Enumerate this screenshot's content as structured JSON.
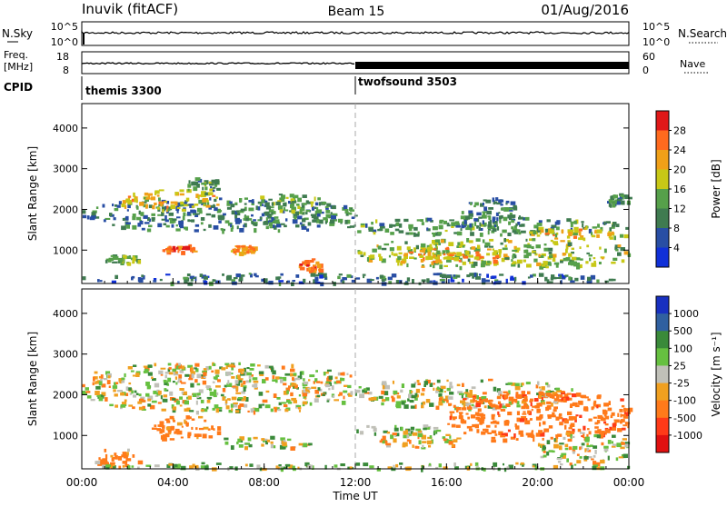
{
  "header": {
    "station": "Inuvik (fitACF)",
    "beam": "Beam 15",
    "date": "01/Aug/2016"
  },
  "top_panels": {
    "nsky_label": "N.Sky",
    "nsky_ticks": [
      "10^5",
      "10^0"
    ],
    "nsearch_label": "N.Search",
    "nsearch_ticks": [
      "10^5",
      "10^0"
    ],
    "freq_label_1": "Freq.",
    "freq_label_2": "[MHz]",
    "freq_ticks": [
      "18",
      "8"
    ],
    "nave_label": "Nave",
    "nave_ticks": [
      "60",
      "0"
    ],
    "cpid_label": "CPID",
    "cpid_segments": [
      "themis 3300",
      "twofsound 3503"
    ]
  },
  "x_axis": {
    "label": "Time UT",
    "ticks": [
      "00:00",
      "04:00",
      "08:00",
      "12:00",
      "16:00",
      "20:00",
      "00:00"
    ]
  },
  "colors": {
    "power": [
      "#1030d8",
      "#284ea4",
      "#3f7b50",
      "#56a04a",
      "#c8c816",
      "#f0a018",
      "#ff6a1e",
      "#e01818"
    ],
    "velocity": [
      "#1830c0",
      "#3060a0",
      "#3a8a3a",
      "#66c040",
      "#c0c0b8",
      "#f0a020",
      "#ff7a1a",
      "#ff3a18",
      "#e01010"
    ]
  },
  "chart_data": [
    {
      "type": "heatmap",
      "quantity": "Power",
      "ylabel": "Slant Range [km]",
      "yticks": [
        "4000",
        "3000",
        "2000",
        "1000"
      ],
      "ylim": [
        180,
        4600
      ],
      "xlim": [
        0,
        24
      ],
      "colorbar_label": "Power [dB]",
      "colorbar_ticks": [
        "28",
        "24",
        "20",
        "16",
        "12",
        "8",
        "4"
      ],
      "colorbar_range": [
        0,
        32
      ],
      "blobs": [
        {
          "t": [
            0.0,
            12.0
          ],
          "r": [
            1500,
            2300
          ],
          "v": 10
        },
        {
          "t": [
            1.5,
            6.0
          ],
          "r": [
            2000,
            2500
          ],
          "v": 20
        },
        {
          "t": [
            7.5,
            10.5
          ],
          "r": [
            1900,
            2400
          ],
          "v": 14
        },
        {
          "t": [
            11.5,
            24.0
          ],
          "r": [
            1400,
            1800
          ],
          "v": 12
        },
        {
          "t": [
            16.5,
            19.5
          ],
          "r": [
            1500,
            2300
          ],
          "v": 10
        },
        {
          "t": [
            12.0,
            24.0
          ],
          "r": [
            600,
            1300
          ],
          "v": 16
        },
        {
          "t": [
            14.0,
            18.5
          ],
          "r": [
            700,
            1100
          ],
          "v": 22
        },
        {
          "t": [
            3.5,
            5.0
          ],
          "r": [
            950,
            1150
          ],
          "v": 26
        },
        {
          "t": [
            1.0,
            2.5
          ],
          "r": [
            700,
            900
          ],
          "v": 14
        },
        {
          "t": [
            6.5,
            7.5
          ],
          "r": [
            950,
            1150
          ],
          "v": 22
        },
        {
          "t": [
            9.5,
            10.5
          ],
          "r": [
            500,
            800
          ],
          "v": 24
        },
        {
          "t": [
            0.0,
            24.0
          ],
          "r": [
            200,
            450
          ],
          "v": 8
        },
        {
          "t": [
            19.5,
            24.0
          ],
          "r": [
            1300,
            1600
          ],
          "v": 20
        },
        {
          "t": [
            23.0,
            24.0
          ],
          "r": [
            2100,
            2400
          ],
          "v": 10
        },
        {
          "t": [
            4.5,
            6.0
          ],
          "r": [
            2400,
            2800
          ],
          "v": 12
        }
      ]
    },
    {
      "type": "heatmap",
      "quantity": "Velocity",
      "ylabel": "Slant Range [km]",
      "yticks": [
        "4000",
        "3000",
        "2000",
        "1000"
      ],
      "ylim": [
        180,
        4600
      ],
      "xlim": [
        0,
        24
      ],
      "colorbar_label": "Velocity [m s^-1]",
      "colorbar_ticks": [
        "1000",
        "500",
        "100",
        "25",
        "-25",
        "-100",
        "-500",
        "-1000"
      ],
      "blobs": [
        {
          "t": [
            0.0,
            12.0
          ],
          "r": [
            1600,
            2800
          ],
          "v": 0
        },
        {
          "t": [
            12.0,
            21.5
          ],
          "r": [
            1700,
            2400
          ],
          "v": 0
        },
        {
          "t": [
            16.0,
            24.0
          ],
          "r": [
            900,
            2100
          ],
          "v": -400
        },
        {
          "t": [
            12.0,
            16.0
          ],
          "r": [
            1000,
            1300
          ],
          "v": 60
        },
        {
          "t": [
            3.0,
            6.0
          ],
          "r": [
            900,
            1500
          ],
          "v": -200
        },
        {
          "t": [
            6.0,
            10.0
          ],
          "r": [
            700,
            1000
          ],
          "v": 0
        },
        {
          "t": [
            0.5,
            2.5
          ],
          "r": [
            250,
            700
          ],
          "v": -150
        },
        {
          "t": [
            20.0,
            24.0
          ],
          "r": [
            300,
            1100
          ],
          "v": 0
        },
        {
          "t": [
            13.0,
            16.5
          ],
          "r": [
            700,
            1100
          ],
          "v": -50
        },
        {
          "t": [
            0.0,
            24.0
          ],
          "r": [
            200,
            350
          ],
          "v": 50
        }
      ]
    }
  ]
}
